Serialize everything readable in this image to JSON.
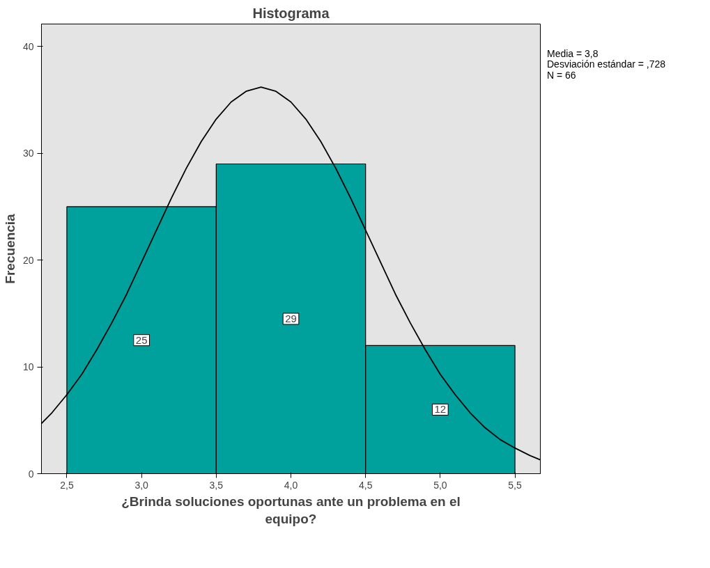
{
  "chart_data": {
    "type": "histogram",
    "title": "Histograma",
    "xlabel": "¿Brinda soluciones oportunas ante un problema en el equipo?",
    "ylabel": "Frecuencia",
    "bins": [
      2.5,
      3.5,
      4.5,
      5.5
    ],
    "values": [
      25,
      29,
      12
    ],
    "color": "#00a09c",
    "value_labels": [
      "25",
      "29",
      "12"
    ],
    "series": [
      {
        "type": "line",
        "color": "#000000",
        "x": [
          2.33,
          2.4,
          2.5,
          2.6,
          2.7,
          2.8,
          2.9,
          3.0,
          3.1,
          3.2,
          3.3,
          3.4,
          3.5,
          3.6,
          3.7,
          3.8,
          3.9,
          4.0,
          4.1,
          4.2,
          4.3,
          4.4,
          4.5,
          4.6,
          4.7,
          4.8,
          4.9,
          5.0,
          5.1,
          5.2,
          5.3,
          5.4,
          5.5,
          5.6,
          5.67
        ],
        "values": [
          4.7,
          5.7,
          7.4,
          9.3,
          11.6,
          14.1,
          16.8,
          19.8,
          22.8,
          25.8,
          28.6,
          31.1,
          33.2,
          34.8,
          35.8,
          36.2,
          35.8,
          34.8,
          33.2,
          31.1,
          28.6,
          25.8,
          22.8,
          19.8,
          16.8,
          14.1,
          11.6,
          9.3,
          7.4,
          5.7,
          4.3,
          3.2,
          2.4,
          1.7,
          1.3
        ]
      }
    ],
    "xlim": [
      2.33,
      5.67
    ],
    "ylim": [
      0,
      42.1
    ],
    "xticks": [
      {
        "value": 2.5,
        "label": "2,5"
      },
      {
        "value": 3.0,
        "label": "3,0"
      },
      {
        "value": 3.5,
        "label": "3,5"
      },
      {
        "value": 4.0,
        "label": "4,0"
      },
      {
        "value": 4.5,
        "label": "4,5"
      },
      {
        "value": 5.0,
        "label": "5,0"
      },
      {
        "value": 5.5,
        "label": "5,5"
      }
    ],
    "yticks": [
      0,
      10,
      20,
      30,
      40
    ],
    "annotations": [
      "Media = 3,8",
      "Desviación estándar = ,728",
      "N = 66"
    ],
    "grid": false
  }
}
